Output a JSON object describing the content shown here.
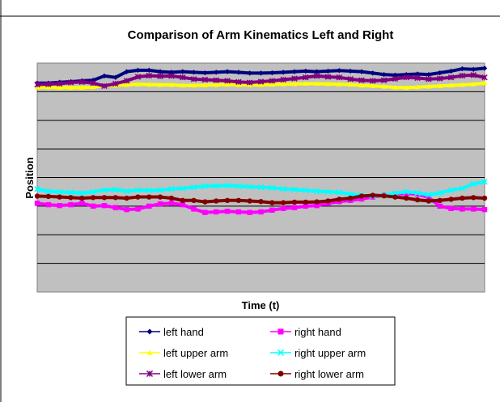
{
  "chart_data": {
    "type": "line",
    "title": "Comparison of Arm Kinematics Left and Right",
    "xlabel": "Time (t)",
    "ylabel": "Position",
    "x": [
      0,
      1,
      2,
      3,
      4,
      5,
      6,
      7,
      8,
      9,
      10,
      11,
      12,
      13,
      14,
      15,
      16,
      17,
      18,
      19,
      20,
      21,
      22,
      23,
      24,
      25,
      26,
      27,
      28,
      29,
      30,
      31,
      32,
      33,
      34,
      35,
      36,
      37,
      38,
      39,
      40
    ],
    "ylim": [
      0,
      8
    ],
    "grid": true,
    "legend_position": "bottom",
    "series": [
      {
        "name": "left hand",
        "color": "#000080",
        "marker": "diamond",
        "values": [
          7.3,
          7.3,
          7.33,
          7.35,
          7.38,
          7.4,
          7.55,
          7.5,
          7.7,
          7.75,
          7.75,
          7.7,
          7.68,
          7.7,
          7.68,
          7.66,
          7.68,
          7.7,
          7.68,
          7.65,
          7.65,
          7.66,
          7.68,
          7.7,
          7.72,
          7.7,
          7.72,
          7.74,
          7.72,
          7.7,
          7.65,
          7.6,
          7.58,
          7.6,
          7.62,
          7.6,
          7.66,
          7.72,
          7.8,
          7.78,
          7.82
        ]
      },
      {
        "name": "right hand",
        "color": "#ff00ff",
        "marker": "square",
        "values": [
          3.1,
          3.05,
          3.02,
          3.05,
          3.1,
          3.0,
          3.02,
          2.95,
          2.88,
          2.9,
          3.0,
          3.08,
          3.1,
          3.05,
          2.9,
          2.78,
          2.8,
          2.82,
          2.8,
          2.78,
          2.8,
          2.86,
          2.92,
          2.95,
          3.0,
          3.02,
          3.1,
          3.16,
          3.2,
          3.25,
          3.32,
          3.38,
          3.42,
          3.44,
          3.42,
          3.3,
          3.0,
          2.92,
          2.9,
          2.9,
          2.88
        ]
      },
      {
        "name": "left upper arm",
        "color": "#ffff00",
        "marker": "triangle",
        "values": [
          7.15,
          7.15,
          7.14,
          7.14,
          7.14,
          7.16,
          7.2,
          7.22,
          7.24,
          7.26,
          7.25,
          7.24,
          7.24,
          7.22,
          7.22,
          7.23,
          7.24,
          7.25,
          7.24,
          7.24,
          7.24,
          7.25,
          7.26,
          7.27,
          7.28,
          7.28,
          7.27,
          7.26,
          7.25,
          7.22,
          7.2,
          7.18,
          7.15,
          7.14,
          7.16,
          7.18,
          7.2,
          7.22,
          7.24,
          7.26,
          7.3
        ]
      },
      {
        "name": "right upper arm",
        "color": "#00ffff",
        "marker": "x",
        "values": [
          3.6,
          3.52,
          3.5,
          3.48,
          3.46,
          3.5,
          3.56,
          3.58,
          3.52,
          3.56,
          3.55,
          3.56,
          3.6,
          3.62,
          3.66,
          3.7,
          3.71,
          3.72,
          3.7,
          3.68,
          3.66,
          3.64,
          3.6,
          3.58,
          3.55,
          3.52,
          3.5,
          3.48,
          3.42,
          3.38,
          3.35,
          3.38,
          3.45,
          3.5,
          3.46,
          3.4,
          3.46,
          3.56,
          3.62,
          3.78,
          3.85
        ]
      },
      {
        "name": "left lower arm",
        "color": "#800080",
        "marker": "star",
        "values": [
          7.25,
          7.26,
          7.28,
          7.32,
          7.34,
          7.3,
          7.2,
          7.28,
          7.38,
          7.52,
          7.56,
          7.54,
          7.55,
          7.5,
          7.44,
          7.42,
          7.4,
          7.38,
          7.34,
          7.32,
          7.35,
          7.38,
          7.42,
          7.46,
          7.5,
          7.55,
          7.52,
          7.5,
          7.44,
          7.4,
          7.38,
          7.4,
          7.45,
          7.5,
          7.48,
          7.44,
          7.46,
          7.5,
          7.56,
          7.58,
          7.5
        ]
      },
      {
        "name": "right lower arm",
        "color": "#800000",
        "marker": "circle",
        "values": [
          3.35,
          3.34,
          3.32,
          3.3,
          3.28,
          3.3,
          3.3,
          3.3,
          3.28,
          3.32,
          3.32,
          3.32,
          3.28,
          3.2,
          3.2,
          3.15,
          3.18,
          3.2,
          3.2,
          3.18,
          3.16,
          3.12,
          3.12,
          3.14,
          3.14,
          3.15,
          3.18,
          3.24,
          3.28,
          3.35,
          3.38,
          3.36,
          3.32,
          3.28,
          3.22,
          3.18,
          3.2,
          3.24,
          3.28,
          3.3,
          3.28
        ]
      }
    ]
  }
}
